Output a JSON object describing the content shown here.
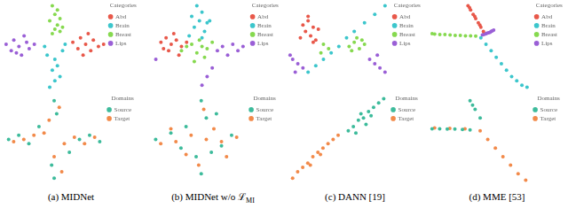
{
  "captions": [
    {
      "label": "(a) MIDNet"
    },
    {
      "label": "(b) MIDNet w/o ℒ",
      "sub": "MI"
    },
    {
      "label": "(c) DANN [19]"
    },
    {
      "label": "(d) MME [53]"
    }
  ],
  "chart_data": [
    {
      "type": "scatter",
      "xlim": [
        -1,
        1
      ],
      "ylim": [
        -1,
        1
      ],
      "tick_labels": false,
      "grid": false,
      "legend": "upper right",
      "legend_title": "Categories",
      "marker": "circle",
      "series": [
        {
          "name": "Abd",
          "color": "#e8584a",
          "x": [
            0.35,
            0.45,
            0.5,
            0.6,
            0.7,
            0.75,
            0.85,
            0.95,
            0.55,
            0.65
          ],
          "values": [
            0.1,
            -0.05,
            0.2,
            0.05,
            -0.1,
            0.15,
            0.0,
            0.05,
            -0.2,
            0.3
          ]
        },
        {
          "name": "Brain",
          "color": "#3cc6cc",
          "x": [
            -0.1,
            0.0,
            0.1,
            -0.05,
            0.05,
            0.0,
            -0.15,
            0.15,
            -0.2,
            0.2
          ],
          "values": [
            -0.95,
            -0.8,
            -0.7,
            -0.55,
            -0.45,
            -0.3,
            -0.2,
            -0.1,
            0.0,
            0.05
          ]
        },
        {
          "name": "Breast",
          "color": "#86d94f",
          "x": [
            -0.05,
            0.05,
            0.0,
            0.1,
            -0.1,
            0.05,
            0.15,
            0.0,
            -0.05,
            0.1
          ],
          "values": [
            0.95,
            0.85,
            0.75,
            0.65,
            0.6,
            0.5,
            0.45,
            0.4,
            0.3,
            0.35
          ]
        },
        {
          "name": "Lips",
          "color": "#9a5fd6",
          "x": [
            -0.95,
            -0.85,
            -0.8,
            -0.7,
            -0.65,
            -0.55,
            -0.5,
            -0.4,
            -0.75,
            -0.6
          ],
          "values": [
            0.05,
            -0.1,
            0.15,
            0.0,
            -0.2,
            0.1,
            -0.05,
            0.05,
            -0.15,
            0.25
          ]
        }
      ]
    },
    {
      "type": "scatter",
      "xlim": [
        -1,
        1
      ],
      "ylim": [
        -1,
        1
      ],
      "tick_labels": false,
      "grid": false,
      "legend": "upper right",
      "legend_title": "Categories",
      "marker": "circle",
      "series": [
        {
          "name": "Abd",
          "color": "#e8584a",
          "x": [
            -0.7,
            -0.6,
            -0.5,
            -0.4,
            -0.3,
            -0.55,
            -0.45,
            -0.2,
            -0.35,
            -0.65
          ],
          "values": [
            0.1,
            0.2,
            0.05,
            0.15,
            0.0,
            -0.1,
            0.3,
            0.1,
            -0.2,
            -0.05
          ]
        },
        {
          "name": "Brain",
          "color": "#3cc6cc",
          "x": [
            0.0,
            0.1,
            -0.1,
            0.05,
            0.2,
            -0.05,
            0.15,
            0.25,
            0.1,
            -0.15
          ],
          "values": [
            0.95,
            0.8,
            0.7,
            0.6,
            0.55,
            0.45,
            0.35,
            0.6,
            0.2,
            0.25
          ]
        },
        {
          "name": "Breast",
          "color": "#86d94f",
          "x": [
            -0.3,
            -0.2,
            -0.1,
            0.0,
            0.1,
            0.2,
            0.3,
            -0.05,
            0.15,
            0.05
          ],
          "values": [
            -0.1,
            0.0,
            0.05,
            -0.15,
            0.0,
            -0.05,
            0.1,
            -0.35,
            -0.25,
            0.15
          ]
        },
        {
          "name": "Lips",
          "color": "#9a5fd6",
          "x": [
            0.4,
            0.5,
            0.6,
            0.7,
            0.8,
            0.9,
            0.3,
            0.2,
            0.1,
            -0.8
          ],
          "values": [
            -0.1,
            0.0,
            -0.2,
            0.05,
            -0.1,
            0.0,
            -0.5,
            -0.7,
            -0.9,
            -0.3
          ]
        }
      ]
    },
    {
      "type": "scatter",
      "xlim": [
        -1,
        1
      ],
      "ylim": [
        -1,
        1
      ],
      "tick_labels": false,
      "grid": false,
      "legend": "upper right",
      "legend_title": "Categories",
      "marker": "circle",
      "series": [
        {
          "name": "Abd",
          "color": "#e8584a",
          "x": [
            -0.7,
            -0.6,
            -0.5,
            -0.65,
            -0.55,
            -0.4,
            -0.75,
            -0.45,
            -0.6,
            -0.5
          ],
          "values": [
            0.5,
            0.6,
            0.45,
            0.35,
            0.25,
            0.4,
            0.2,
            0.15,
            0.7,
            0.1
          ]
        },
        {
          "name": "Brain",
          "color": "#3cc6cc",
          "x": [
            -0.6,
            -0.45,
            -0.3,
            -0.15,
            0.0,
            0.15,
            0.3,
            0.5,
            0.7,
            0.9
          ],
          "values": [
            -0.6,
            -0.45,
            -0.3,
            -0.15,
            0.0,
            0.2,
            0.35,
            0.55,
            0.75,
            0.95
          ]
        },
        {
          "name": "Breast",
          "color": "#86d94f",
          "x": [
            0.2,
            0.3,
            0.4,
            0.35,
            0.5,
            0.25,
            0.45,
            -0.3,
            -0.2,
            -0.35
          ],
          "values": [
            0.0,
            0.1,
            -0.05,
            0.2,
            0.05,
            -0.1,
            0.15,
            0.05,
            -0.05,
            -0.15
          ]
        },
        {
          "name": "Lips",
          "color": "#9a5fd6",
          "x": [
            -0.9,
            -0.8,
            -0.7,
            -0.85,
            -0.95,
            0.6,
            0.7,
            0.8,
            0.9,
            0.75
          ],
          "values": [
            -0.3,
            -0.4,
            -0.5,
            -0.6,
            -0.2,
            -0.3,
            -0.4,
            -0.5,
            -0.6,
            -0.2
          ]
        }
      ]
    },
    {
      "type": "scatter",
      "xlim": [
        -1,
        1
      ],
      "ylim": [
        -1,
        1
      ],
      "tick_labels": false,
      "grid": false,
      "legend": "upper right",
      "legend_title": "Categories",
      "marker": "circle",
      "series": [
        {
          "name": "Abd",
          "color": "#e8584a",
          "x": [
            -0.25,
            -0.2,
            -0.15,
            -0.1,
            -0.05,
            0.0,
            0.05,
            -0.22,
            -0.12,
            -0.02
          ],
          "values": [
            0.95,
            0.85,
            0.75,
            0.65,
            0.55,
            0.45,
            0.35,
            0.9,
            0.7,
            0.5
          ]
        },
        {
          "name": "Brain",
          "color": "#3cc6cc",
          "x": [
            0.0,
            0.1,
            0.2,
            0.3,
            0.4,
            0.5,
            0.6,
            0.7,
            0.8,
            0.9
          ],
          "values": [
            0.2,
            0.05,
            -0.1,
            -0.25,
            -0.4,
            -0.55,
            -0.7,
            -0.8,
            -0.9,
            -0.95
          ]
        },
        {
          "name": "Breast",
          "color": "#86d94f",
          "x": [
            -0.95,
            -0.9,
            -0.8,
            -0.7,
            -0.6,
            -0.5,
            -0.4,
            -0.3,
            -0.2,
            -0.1
          ],
          "values": [
            0.3,
            0.29,
            0.28,
            0.28,
            0.27,
            0.26,
            0.26,
            0.25,
            0.25,
            0.24
          ]
        },
        {
          "name": "Lips",
          "color": "#9a5fd6",
          "x": [
            0.05,
            0.1,
            0.15,
            0.2,
            0.12,
            0.08,
            0.18,
            0.22,
            0.25,
            0.03
          ],
          "values": [
            0.28,
            0.3,
            0.32,
            0.35,
            0.31,
            0.29,
            0.33,
            0.36,
            0.38,
            0.27
          ]
        }
      ]
    },
    {
      "type": "scatter",
      "xlim": [
        -1,
        1
      ],
      "ylim": [
        -1,
        1
      ],
      "tick_labels": false,
      "grid": false,
      "legend": "upper right",
      "legend_title": "Domains",
      "marker": "circle",
      "series": [
        {
          "name": "Source",
          "color": "#3dbb9b",
          "x": [
            -0.9,
            -0.7,
            -0.5,
            0.5,
            0.7,
            0.9,
            0.0,
            0.05,
            -0.05,
            0.0,
            -0.3,
            0.3
          ],
          "values": [
            0.0,
            0.1,
            -0.1,
            0.0,
            0.1,
            -0.05,
            0.9,
            0.6,
            -0.6,
            -0.9,
            0.3,
            -0.3
          ]
        },
        {
          "name": "Target",
          "color": "#f28a4a",
          "x": [
            -0.8,
            -0.6,
            -0.4,
            -0.2,
            0.2,
            0.4,
            0.6,
            0.8,
            0.1,
            -0.1,
            0.0,
            0.15
          ],
          "values": [
            -0.05,
            0.0,
            0.1,
            0.15,
            -0.1,
            0.05,
            -0.1,
            0.05,
            0.75,
            0.45,
            -0.4,
            -0.75
          ]
        }
      ]
    },
    {
      "type": "scatter",
      "xlim": [
        -1,
        1
      ],
      "ylim": [
        -1,
        1
      ],
      "tick_labels": false,
      "grid": false,
      "legend": "upper right",
      "legend_title": "Domains",
      "marker": "circle",
      "series": [
        {
          "name": "Source",
          "color": "#3dbb9b",
          "x": [
            -0.8,
            -0.5,
            -0.2,
            0.1,
            0.4,
            0.7,
            0.0,
            0.1,
            0.3,
            0.2,
            -0.3,
            0.5
          ],
          "values": [
            0.0,
            0.15,
            0.3,
            0.9,
            0.6,
            0.1,
            -0.4,
            -0.8,
            -0.3,
            0.5,
            -0.2,
            -0.15
          ]
        },
        {
          "name": "Target",
          "color": "#f28a4a",
          "x": [
            -0.7,
            -0.4,
            -0.1,
            0.2,
            0.5,
            0.8,
            -0.2,
            0.05,
            0.35,
            0.15,
            -0.5,
            0.6
          ],
          "values": [
            -0.1,
            -0.05,
            0.1,
            0.0,
            -0.05,
            0.05,
            -0.35,
            -0.6,
            0.25,
            0.7,
            0.25,
            -0.4
          ]
        }
      ]
    },
    {
      "type": "scatter",
      "xlim": [
        -1,
        1
      ],
      "ylim": [
        -1,
        1
      ],
      "tick_labels": false,
      "grid": false,
      "legend": "upper right",
      "legend_title": "Domains",
      "marker": "circle",
      "series": [
        {
          "name": "Source",
          "color": "#3dbb9b",
          "x": [
            0.2,
            0.3,
            0.4,
            0.5,
            0.6,
            0.7,
            0.8,
            0.9,
            0.35,
            0.55,
            0.65,
            0.45
          ],
          "values": [
            0.2,
            0.3,
            0.45,
            0.5,
            0.65,
            0.75,
            0.85,
            0.95,
            0.15,
            0.35,
            0.55,
            0.6
          ]
        },
        {
          "name": "Target",
          "color": "#f28a4a",
          "x": [
            -0.9,
            -0.8,
            -0.7,
            -0.6,
            -0.5,
            -0.4,
            -0.3,
            -0.2,
            -0.1,
            0.0,
            -0.55,
            -0.35
          ],
          "values": [
            -0.9,
            -0.75,
            -0.65,
            -0.55,
            -0.4,
            -0.3,
            -0.2,
            -0.1,
            0.0,
            0.1,
            -0.6,
            -0.35
          ]
        }
      ]
    },
    {
      "type": "scatter",
      "xlim": [
        -1,
        1
      ],
      "ylim": [
        -1,
        1
      ],
      "tick_labels": false,
      "grid": false,
      "legend": "upper right",
      "legend_title": "Domains",
      "marker": "circle",
      "series": [
        {
          "name": "Source",
          "color": "#3dbb9b",
          "x": [
            -0.95,
            -0.8,
            -0.65,
            -0.5,
            -0.35,
            -0.2,
            -0.2,
            -0.1,
            0.0,
            -0.15
          ],
          "values": [
            0.25,
            0.25,
            0.24,
            0.24,
            0.23,
            0.22,
            0.9,
            0.7,
            0.5,
            0.8
          ]
        },
        {
          "name": "Target",
          "color": "#f28a4a",
          "x": [
            0.0,
            0.15,
            0.3,
            0.45,
            0.6,
            0.75,
            0.9,
            -0.9,
            -0.6,
            -0.3
          ],
          "values": [
            0.2,
            0.0,
            -0.2,
            -0.4,
            -0.6,
            -0.8,
            -0.95,
            0.27,
            0.26,
            0.25
          ]
        }
      ]
    }
  ]
}
